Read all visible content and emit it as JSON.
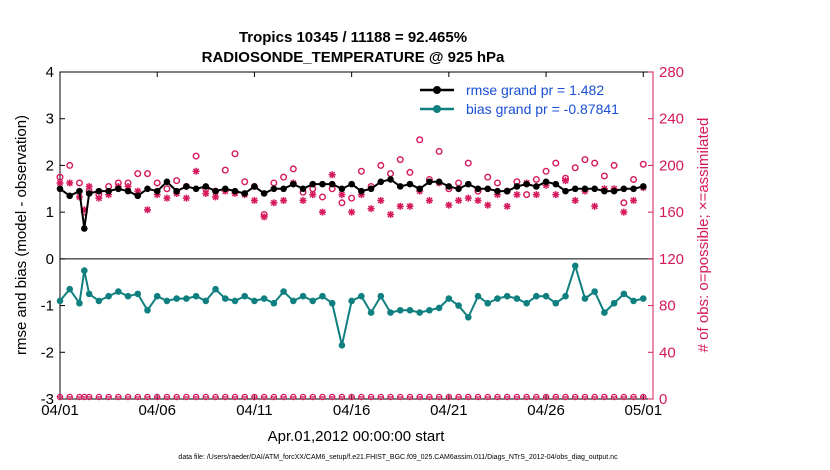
{
  "chart_data": {
    "type": "line",
    "title_line1": "Tropics 10345 / 11188 = 92.465%",
    "title_line2": "RADIOSONDE_TEMPERATURE @ 925 hPa",
    "xlabel": "Apr.01,2012 00:00:00 start",
    "ylabel_left": "rmse and bias (model - observation)",
    "ylabel_right": "# of obs: o=possible; ×=assimilated",
    "x_range": [
      0,
      30.5
    ],
    "ylim_left": [
      -3,
      4
    ],
    "ylim_right": [
      0,
      280
    ],
    "x_ticks": [
      {
        "x": 0,
        "label": "04/01"
      },
      {
        "x": 5,
        "label": "04/06"
      },
      {
        "x": 10,
        "label": "04/11"
      },
      {
        "x": 15,
        "label": "04/16"
      },
      {
        "x": 20,
        "label": "04/21"
      },
      {
        "x": 25,
        "label": "04/26"
      },
      {
        "x": 30,
        "label": "05/01"
      }
    ],
    "y_ticks_left": [
      -3,
      -2,
      -1,
      0,
      1,
      2,
      3,
      4
    ],
    "y_ticks_right": [
      0,
      40,
      80,
      120,
      160,
      200,
      240,
      280
    ],
    "legend": [
      {
        "label": "rmse grand pr = 1.482",
        "color": "#000000"
      },
      {
        "label": "bias grand pr = -0.87841",
        "color": "#0f7f7f"
      }
    ],
    "footer": "data file: /Users/raeder/DAI/ATM_forcXX/CAM6_setup/f.e21.FHIST_BGC.f09_025.CAM6assim.011/Diags_NTrS_2012-04/obs_diag_output.nc",
    "colors": {
      "rmse": "#000000",
      "bias": "#0f7f7f",
      "obs": "#d6195e",
      "axis_right": "#d6195e"
    },
    "series": [
      {
        "name": "rmse",
        "x": [
          0,
          0.5,
          1,
          1.25,
          1.5,
          2,
          2.5,
          3,
          3.5,
          4,
          4.5,
          5,
          5.5,
          6,
          6.5,
          7,
          7.5,
          8,
          8.5,
          9,
          9.5,
          10,
          10.5,
          11,
          11.5,
          12,
          12.5,
          13,
          13.5,
          14,
          14.5,
          15,
          15.5,
          16,
          16.5,
          17,
          17.5,
          18,
          18.5,
          19,
          19.5,
          20,
          20.5,
          21,
          21.5,
          22,
          22.5,
          23,
          23.5,
          24,
          24.5,
          25,
          25.5,
          26,
          26.5,
          27,
          27.5,
          28,
          28.5,
          29,
          29.5,
          30
        ],
        "values": [
          1.5,
          1.35,
          1.45,
          0.65,
          1.4,
          1.45,
          1.45,
          1.5,
          1.45,
          1.35,
          1.5,
          1.45,
          1.65,
          1.45,
          1.55,
          1.5,
          1.55,
          1.45,
          1.5,
          1.45,
          1.4,
          1.55,
          1.4,
          1.5,
          1.5,
          1.6,
          1.5,
          1.6,
          1.6,
          1.6,
          1.5,
          1.6,
          1.45,
          1.5,
          1.65,
          1.7,
          1.55,
          1.6,
          1.5,
          1.65,
          1.65,
          1.55,
          1.5,
          1.6,
          1.5,
          1.5,
          1.45,
          1.45,
          1.55,
          1.6,
          1.55,
          1.65,
          1.6,
          1.45,
          1.5,
          1.5,
          1.5,
          1.45,
          1.45,
          1.5,
          1.5,
          1.55
        ]
      },
      {
        "name": "bias",
        "x": [
          0,
          0.5,
          1,
          1.25,
          1.5,
          2,
          2.5,
          3,
          3.5,
          4,
          4.5,
          5,
          5.5,
          6,
          6.5,
          7,
          7.5,
          8,
          8.5,
          9,
          9.5,
          10,
          10.5,
          11,
          11.5,
          12,
          12.5,
          13,
          13.5,
          14,
          14.5,
          15,
          15.5,
          16,
          16.5,
          17,
          17.5,
          18,
          18.5,
          19,
          19.5,
          20,
          20.5,
          21,
          21.5,
          22,
          22.5,
          23,
          23.5,
          24,
          24.5,
          25,
          25.5,
          26,
          26.5,
          27,
          27.5,
          28,
          28.5,
          29,
          29.5,
          30
        ],
        "values": [
          -0.9,
          -0.65,
          -0.95,
          -0.25,
          -0.75,
          -0.9,
          -0.8,
          -0.7,
          -0.8,
          -0.75,
          -1.1,
          -0.8,
          -0.9,
          -0.85,
          -0.85,
          -0.8,
          -0.9,
          -0.65,
          -0.85,
          -0.9,
          -0.8,
          -0.9,
          -0.85,
          -0.95,
          -0.7,
          -0.9,
          -0.8,
          -0.9,
          -0.8,
          -0.95,
          -1.85,
          -0.9,
          -0.8,
          -1.15,
          -0.8,
          -1.15,
          -1.1,
          -1.1,
          -1.15,
          -1.1,
          -1.05,
          -0.85,
          -1.0,
          -1.25,
          -0.8,
          -0.95,
          -0.85,
          -0.8,
          -0.85,
          -0.95,
          -0.8,
          -0.8,
          -0.95,
          -0.8,
          -0.15,
          -0.85,
          -0.7,
          -1.15,
          -0.95,
          -0.75,
          -0.9,
          -0.85
        ]
      },
      {
        "name": "obs_possible",
        "x": [
          0,
          0.5,
          1,
          1.25,
          1.5,
          2,
          2.5,
          3,
          3.5,
          4,
          4.5,
          5,
          5.5,
          6,
          6.5,
          7,
          7.5,
          8,
          8.5,
          9,
          9.5,
          10,
          10.5,
          11,
          11.5,
          12,
          12.5,
          13,
          13.5,
          14,
          14.5,
          15,
          15.5,
          16,
          16.5,
          17,
          17.5,
          18,
          18.5,
          19,
          19.5,
          20,
          20.5,
          21,
          21.5,
          22,
          22.5,
          23,
          23.5,
          24,
          24.5,
          25,
          25.5,
          26,
          26.5,
          27,
          27.5,
          28,
          28.5,
          29,
          29.5,
          30
        ],
        "values": [
          190,
          200,
          185,
          160,
          178,
          175,
          182,
          185,
          185,
          193,
          193,
          185,
          180,
          187,
          182,
          208,
          180,
          178,
          196,
          210,
          186,
          182,
          158,
          185,
          190,
          197,
          177,
          180,
          173,
          180,
          168,
          172,
          195,
          182,
          200,
          193,
          205,
          194,
          222,
          188,
          212,
          180,
          185,
          202,
          178,
          190,
          185,
          178,
          186,
          175,
          188,
          195,
          202,
          189,
          198,
          205,
          202,
          191,
          200,
          168,
          188,
          201
        ]
      },
      {
        "name": "obs_assimilated",
        "x": [
          0,
          0.5,
          1,
          1.25,
          1.5,
          2,
          2.5,
          3,
          3.5,
          4,
          4.5,
          5,
          5.5,
          6,
          6.5,
          7,
          7.5,
          8,
          8.5,
          9,
          9.5,
          10,
          10.5,
          11,
          11.5,
          12,
          12.5,
          13,
          13.5,
          14,
          14.5,
          15,
          15.5,
          16,
          16.5,
          17,
          17.5,
          18,
          18.5,
          19,
          19.5,
          20,
          20.5,
          21,
          21.5,
          22,
          22.5,
          23,
          23.5,
          24,
          24.5,
          25,
          25.5,
          26,
          26.5,
          27,
          27.5,
          28,
          28.5,
          29,
          29.5,
          30
        ],
        "values": [
          185,
          185,
          173,
          162,
          182,
          172,
          175,
          182,
          182,
          178,
          162,
          175,
          172,
          176,
          172,
          195,
          176,
          173,
          178,
          176,
          175,
          170,
          156,
          168,
          170,
          185,
          170,
          175,
          160,
          192,
          175,
          160,
          175,
          163,
          170,
          158,
          165,
          165,
          178,
          170,
          185,
          166,
          170,
          172,
          170,
          166,
          175,
          165,
          175,
          185,
          175,
          183,
          175,
          187,
          170,
          178,
          165,
          180,
          180,
          160,
          170,
          181
        ]
      }
    ]
  }
}
